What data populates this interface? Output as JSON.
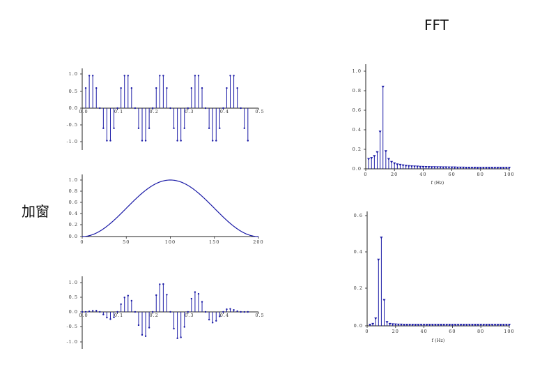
{
  "labels": {
    "fft": "FFT",
    "window": "加窗"
  },
  "colors": {
    "stem": "#1a1aa6",
    "axis": "#222222"
  },
  "chart_data": [
    {
      "type": "stem",
      "id": "signal",
      "xticks": [
        "0.0",
        "0.1",
        "0.2",
        "0.3",
        "0.4",
        "0.5"
      ],
      "yticks": [
        "1.0",
        "0.5",
        "0.0",
        "-0.5",
        "-1.0"
      ],
      "xlim": [
        0,
        0.5
      ],
      "ylim": [
        -1.0,
        1.0
      ],
      "x_start": 0.01,
      "x_step": 0.01,
      "x_end": 0.47,
      "function": "sin(2*pi*10*t)"
    },
    {
      "type": "line",
      "id": "window",
      "xticks": [
        "0",
        "50",
        "100",
        "150",
        "200"
      ],
      "yticks": [
        "1.0",
        "0.8",
        "0.6",
        "0.4",
        "0.2",
        "0.0"
      ],
      "xlim": [
        0,
        200
      ],
      "ylim": [
        0,
        1.0
      ],
      "function": "0.5-0.5*cos(2*pi*n/200)"
    },
    {
      "type": "stem",
      "id": "windowed",
      "xticks": [
        "0.0",
        "0.1",
        "0.2",
        "0.3",
        "0.4",
        "0.5"
      ],
      "yticks": [
        "1.0",
        "0.5",
        "0.0",
        "-0.5",
        "-1.0"
      ],
      "xlim": [
        0,
        0.5
      ],
      "ylim": [
        -1.0,
        1.0
      ],
      "x_start": 0.0,
      "x_step": 0.01,
      "x_end": 0.47,
      "function": "sin(2*pi*10*t)*hanning(t/0.47)"
    },
    {
      "type": "stem",
      "id": "fft",
      "xlabel": "f (Hz)",
      "xticks": [
        "0",
        "20",
        "40",
        "60",
        "80",
        "100"
      ],
      "yticks": [
        "1.0",
        "0.8",
        "0.6",
        "0.4",
        "0.2",
        "0.0"
      ],
      "xlim": [
        0,
        100
      ],
      "ylim": [
        0,
        1.0
      ],
      "x": [
        2,
        4,
        6,
        8,
        10,
        12,
        14,
        16,
        18,
        20,
        22,
        24,
        26,
        28,
        30,
        32,
        34,
        36,
        38,
        40,
        42,
        44,
        46,
        48,
        50,
        52,
        54,
        56,
        58,
        60,
        62,
        64,
        66,
        68,
        70,
        72,
        74,
        76,
        78,
        80,
        82,
        84,
        86,
        88,
        90,
        92,
        94,
        96,
        98,
        100
      ],
      "values": [
        0.1,
        0.11,
        0.13,
        0.17,
        0.38,
        0.84,
        0.18,
        0.1,
        0.07,
        0.055,
        0.045,
        0.04,
        0.035,
        0.03,
        0.028,
        0.025,
        0.023,
        0.022,
        0.02,
        0.019,
        0.018,
        0.017,
        0.016,
        0.016,
        0.015,
        0.015,
        0.014,
        0.014,
        0.013,
        0.013,
        0.013,
        0.012,
        0.012,
        0.012,
        0.011,
        0.011,
        0.011,
        0.011,
        0.01,
        0.01,
        0.01,
        0.01,
        0.01,
        0.01,
        0.01,
        0.01,
        0.01,
        0.01,
        0.01,
        0.01
      ]
    },
    {
      "type": "stem",
      "id": "fft-windowed",
      "xlabel": "f (Hz)",
      "xticks": [
        "0",
        "20",
        "40",
        "60",
        "80",
        "100"
      ],
      "yticks": [
        "0.6",
        "0.4",
        "0.2",
        "0.0"
      ],
      "xlim": [
        0,
        100
      ],
      "ylim": [
        0,
        0.6
      ],
      "x": [
        2,
        4,
        6,
        8,
        10,
        12,
        14,
        16,
        18,
        20,
        22,
        24,
        26,
        28,
        30,
        32,
        34,
        36,
        38,
        40,
        42,
        44,
        46,
        48,
        50,
        52,
        54,
        56,
        58,
        60,
        62,
        64,
        66,
        68,
        70,
        72,
        74,
        76,
        78,
        80,
        82,
        84,
        86,
        88,
        90,
        92,
        94,
        96,
        98,
        100
      ],
      "values": [
        0.005,
        0.01,
        0.04,
        0.36,
        0.48,
        0.14,
        0.02,
        0.01,
        0.008,
        0.007,
        0.006,
        0.006,
        0.005,
        0.005,
        0.005,
        0.005,
        0.005,
        0.005,
        0.005,
        0.005,
        0.005,
        0.005,
        0.005,
        0.005,
        0.005,
        0.005,
        0.005,
        0.005,
        0.005,
        0.005,
        0.005,
        0.005,
        0.005,
        0.005,
        0.005,
        0.005,
        0.005,
        0.005,
        0.005,
        0.005,
        0.005,
        0.005,
        0.005,
        0.005,
        0.005,
        0.005,
        0.005,
        0.005,
        0.005,
        0.005
      ]
    }
  ]
}
